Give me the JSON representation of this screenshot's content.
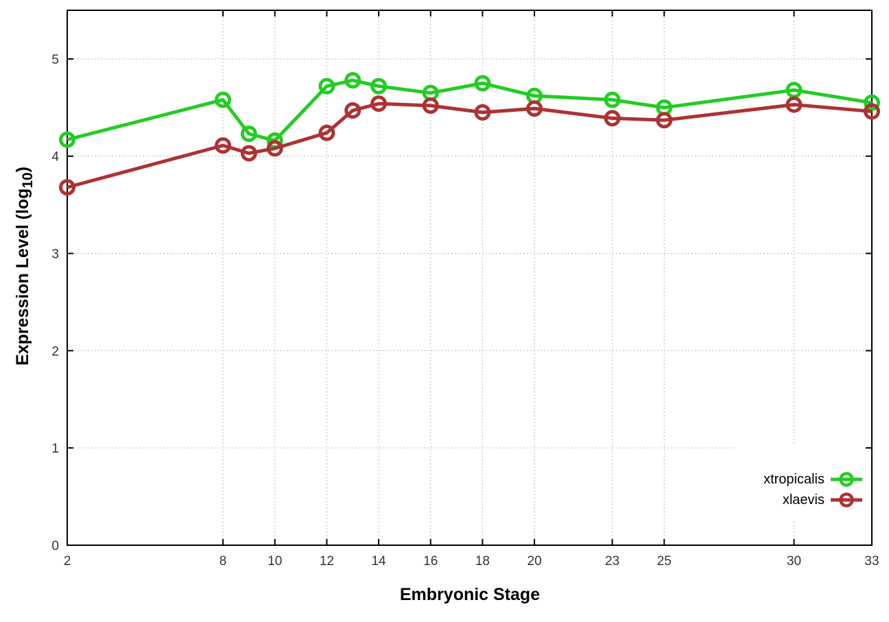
{
  "figure": {
    "background": "#ffffff",
    "xlabel": "Embryonic Stage",
    "ylabel_prefix": "Expression Level (log",
    "ylabel_sub": "10",
    "ylabel_suffix": ")",
    "border_color": "#000000",
    "grid_color": "#b9b9b9",
    "tick_label_color": "#333333"
  },
  "chart_data": {
    "type": "line",
    "title": "",
    "xlabel": "Embryonic Stage",
    "ylabel": "Expression Level (log10)",
    "x": [
      2,
      8,
      9,
      10,
      12,
      13,
      14,
      16,
      18,
      20,
      23,
      25,
      30,
      33
    ],
    "series": [
      {
        "name": "xtropicalis",
        "color": "#23cc23",
        "values": [
          4.17,
          4.58,
          4.23,
          4.16,
          4.72,
          4.78,
          4.72,
          4.65,
          4.75,
          4.62,
          4.58,
          4.5,
          4.68,
          4.55
        ]
      },
      {
        "name": "xlaevis",
        "color": "#ad3232",
        "values": [
          3.68,
          4.11,
          4.03,
          4.08,
          4.24,
          4.47,
          4.54,
          4.52,
          4.45,
          4.49,
          4.39,
          4.37,
          4.53,
          4.46
        ]
      }
    ],
    "xticks": [
      2,
      8,
      10,
      12,
      14,
      16,
      18,
      20,
      23,
      25,
      30,
      33
    ],
    "yticks": [
      0,
      1,
      2,
      3,
      4,
      5
    ],
    "xlim": [
      2,
      33
    ],
    "ylim": [
      0,
      5.5
    ],
    "grid": true,
    "grid_style": "dotted",
    "marker": "open-circle",
    "legend_position": "bottom-right",
    "legend_order": [
      "xtropicalis",
      "xlaevis"
    ]
  }
}
